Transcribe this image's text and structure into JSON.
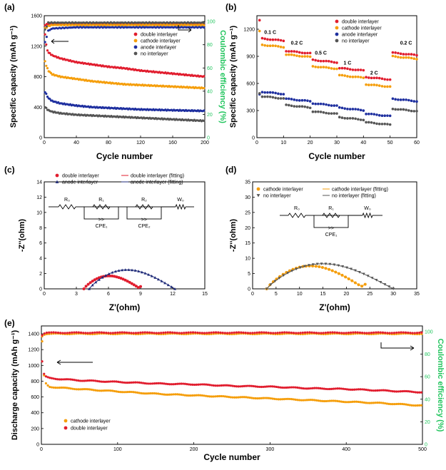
{
  "colors": {
    "red": "#e11d2e",
    "orange": "#f59e0b",
    "blue": "#1e2f9f",
    "gray": "#555555",
    "green": "#22c55e",
    "navy": "#1e2a78"
  },
  "chart_data": [
    {
      "id": "a",
      "panel_label": "(a)",
      "type": "scatter",
      "xlabel": "Cycle number",
      "ylabel": "Specific capacity (mAh g⁻¹)",
      "ylabel2": "Coulombic efficiency (%)",
      "xlim": [
        0,
        200
      ],
      "ylim": [
        0,
        1600
      ],
      "y2lim": [
        0,
        105
      ],
      "xticks": [
        0,
        40,
        80,
        120,
        160,
        200
      ],
      "yticks": [
        0,
        400,
        800,
        1200,
        1600
      ],
      "y2ticks": [
        0,
        20,
        40,
        60,
        80,
        100
      ],
      "legend": [
        "double interlayer",
        "cathode interlayer",
        "anode interlayer",
        "no interlayer"
      ],
      "series": [
        {
          "name": "double interlayer",
          "color": "red",
          "x": [
            1,
            3,
            5,
            10,
            20,
            40,
            60,
            80,
            100,
            120,
            140,
            160,
            180,
            200
          ],
          "y": [
            1360,
            1170,
            1120,
            1080,
            1040,
            990,
            960,
            930,
            910,
            880,
            860,
            840,
            820,
            800
          ]
        },
        {
          "name": "cathode interlayer",
          "color": "orange",
          "x": [
            1,
            3,
            5,
            10,
            20,
            40,
            60,
            80,
            100,
            120,
            140,
            160,
            180,
            200
          ],
          "y": [
            1000,
            930,
            880,
            830,
            800,
            770,
            740,
            720,
            700,
            690,
            680,
            670,
            660,
            650
          ]
        },
        {
          "name": "anode interlayer",
          "color": "blue",
          "x": [
            1,
            3,
            5,
            10,
            20,
            40,
            60,
            80,
            100,
            120,
            140,
            160,
            180,
            200
          ],
          "y": [
            600,
            560,
            520,
            480,
            450,
            420,
            400,
            390,
            380,
            370,
            365,
            360,
            355,
            350
          ]
        },
        {
          "name": "no interlayer",
          "color": "gray",
          "x": [
            1,
            3,
            5,
            10,
            20,
            40,
            60,
            80,
            100,
            120,
            140,
            160,
            180,
            200
          ],
          "y": [
            400,
            380,
            360,
            340,
            320,
            300,
            290,
            280,
            270,
            260,
            250,
            240,
            230,
            220
          ]
        },
        {
          "name": "double interlayer CE",
          "color": "red",
          "axis": "y2",
          "x": [
            1,
            5,
            10,
            40,
            80,
            120,
            160,
            200
          ],
          "y": [
            97,
            98,
            98,
            98,
            98,
            98,
            98,
            98
          ]
        },
        {
          "name": "cathode interlayer CE",
          "color": "orange",
          "axis": "y2",
          "x": [
            1,
            5,
            10,
            40,
            80,
            120,
            160,
            200
          ],
          "y": [
            94,
            96,
            97,
            97,
            97,
            97,
            97,
            97
          ]
        },
        {
          "name": "anode interlayer CE",
          "color": "blue",
          "axis": "y2",
          "x": [
            1,
            5,
            10,
            40,
            80,
            120,
            160,
            200
          ],
          "y": [
            82,
            92,
            94,
            95,
            95,
            95,
            95,
            95
          ]
        },
        {
          "name": "no interlayer CE",
          "color": "gray",
          "axis": "y2",
          "x": [
            1,
            5,
            10,
            40,
            80,
            120,
            160,
            200
          ],
          "y": [
            93,
            99,
            99,
            99,
            99,
            99,
            99,
            99
          ]
        }
      ]
    },
    {
      "id": "b",
      "panel_label": "(b)",
      "type": "scatter",
      "xlabel": "Cycle number",
      "ylabel": "Specific capacity (mAh g⁻¹)",
      "xlim": [
        0,
        60
      ],
      "ylim": [
        0,
        1350
      ],
      "xticks": [
        0,
        10,
        20,
        30,
        40,
        50,
        60
      ],
      "yticks": [
        0,
        300,
        600,
        900,
        1200
      ],
      "legend": [
        "double interlayer",
        "cathode interlayer",
        "anode interlayer",
        "no interlayer"
      ],
      "annotations": [
        {
          "text": "0.1 C",
          "x": 5,
          "y": 1150
        },
        {
          "text": "0.2 C",
          "x": 15,
          "y": 1030
        },
        {
          "text": "0.5 C",
          "x": 24,
          "y": 920
        },
        {
          "text": "1 C",
          "x": 34,
          "y": 810
        },
        {
          "text": "2 C",
          "x": 44,
          "y": 700
        },
        {
          "text": "0.2 C",
          "x": 56,
          "y": 1030
        }
      ],
      "series": [
        {
          "name": "double interlayer",
          "color": "red",
          "rates": [
            1100,
            960,
            860,
            770,
            670,
            940
          ],
          "first": 1300
        },
        {
          "name": "cathode interlayer",
          "color": "orange",
          "rates": [
            1030,
            920,
            790,
            690,
            590,
            900
          ],
          "first": 1180
        },
        {
          "name": "anode interlayer",
          "color": "blue",
          "rates": [
            510,
            430,
            380,
            330,
            265,
            430
          ],
          "first": 480
        },
        {
          "name": "no interlayer",
          "color": "gray",
          "rates": [
            460,
            360,
            290,
            225,
            170,
            320
          ],
          "first": 490
        }
      ]
    },
    {
      "id": "c",
      "panel_label": "(c)",
      "type": "scatter",
      "xlabel": "Z'(ohm)",
      "ylabel": "-Z''(ohm)",
      "xlim": [
        0,
        15
      ],
      "ylim": [
        0,
        14
      ],
      "xticks": [
        0,
        3,
        6,
        9,
        12,
        15
      ],
      "yticks": [
        0,
        2,
        4,
        6,
        8,
        10,
        12,
        14
      ],
      "legend": [
        "double interlayer",
        "anode interlayer",
        "double interlayer (fitting)",
        "anode interlayer (fitting)"
      ],
      "circuit_labels": [
        "R₀",
        "R₁",
        "R₂",
        "W₀",
        "CPE₁",
        "CPE₂"
      ],
      "series": [
        {
          "name": "double interlayer",
          "color": "red",
          "marker": "circle",
          "x0": 3.7,
          "x1": 9.0,
          "peak": 1.7,
          "tail": 0.3
        },
        {
          "name": "anode interlayer",
          "color": "navy",
          "marker": "triangle",
          "x0": 4.2,
          "x1": 12.2,
          "peak": 2.5,
          "tail": 0
        }
      ]
    },
    {
      "id": "d",
      "panel_label": "(d)",
      "type": "scatter",
      "xlabel": "Z'(ohm)",
      "ylabel": "-Z''(ohm)",
      "xlim": [
        0,
        35
      ],
      "ylim": [
        0,
        35
      ],
      "xticks": [
        0,
        5,
        10,
        15,
        20,
        25,
        30,
        35
      ],
      "yticks": [
        0,
        5,
        10,
        15,
        20,
        25,
        30,
        35
      ],
      "legend": [
        "cathode interlayer",
        "no interlayer",
        "cathode interlayer (fitting)",
        "no interlayer (fitting)"
      ],
      "circuit_labels": [
        "R₀",
        "R₁",
        "W₀",
        "CPE₁"
      ],
      "series": [
        {
          "name": "cathode interlayer",
          "color": "orange",
          "marker": "circle",
          "x0": 3.0,
          "x1": 24.0,
          "peak": 7.5,
          "tail": 1.5
        },
        {
          "name": "no interlayer",
          "color": "gray",
          "marker": "triangle-down",
          "x0": 3.0,
          "x1": 30.0,
          "peak": 8.2,
          "tail": 0
        }
      ]
    },
    {
      "id": "e",
      "panel_label": "(e)",
      "type": "scatter",
      "xlabel": "Cycle number",
      "ylabel": "Discharge capacity (mAh g⁻¹)",
      "ylabel2": "Coulombic efficiency (%)",
      "xlim": [
        0,
        500
      ],
      "ylim": [
        0,
        1500
      ],
      "y2lim": [
        0,
        105
      ],
      "xticks": [
        0,
        100,
        200,
        300,
        400,
        500
      ],
      "yticks": [
        0,
        200,
        400,
        600,
        800,
        1000,
        1200,
        1400
      ],
      "y2ticks": [
        0,
        20,
        40,
        60,
        80,
        100
      ],
      "legend": [
        "cathode interlayer",
        "double interlayer"
      ],
      "series": [
        {
          "name": "cathode interlayer",
          "color": "orange",
          "x": [
            1,
            3,
            5,
            10,
            20,
            50,
            100,
            150,
            200,
            250,
            300,
            350,
            400,
            450,
            500
          ],
          "y": [
            1300,
            900,
            780,
            730,
            720,
            700,
            670,
            640,
            620,
            600,
            580,
            560,
            540,
            520,
            490
          ]
        },
        {
          "name": "double interlayer",
          "color": "red",
          "x": [
            1,
            3,
            5,
            10,
            20,
            50,
            100,
            150,
            200,
            250,
            300,
            350,
            400,
            450,
            500
          ],
          "y": [
            1050,
            900,
            860,
            840,
            830,
            810,
            790,
            770,
            760,
            740,
            730,
            710,
            700,
            680,
            660
          ]
        },
        {
          "name": "cathode interlayer CE",
          "color": "orange",
          "axis": "y2",
          "x": [
            1,
            5,
            10,
            100,
            200,
            300,
            400,
            500
          ],
          "y": [
            96,
            98,
            98,
            98,
            98,
            98,
            98,
            98
          ]
        },
        {
          "name": "double interlayer CE",
          "color": "red",
          "axis": "y2",
          "x": [
            1,
            5,
            10,
            100,
            200,
            300,
            400,
            500
          ],
          "y": [
            97,
            99,
            99,
            99,
            99,
            99,
            99,
            99
          ]
        }
      ]
    }
  ]
}
